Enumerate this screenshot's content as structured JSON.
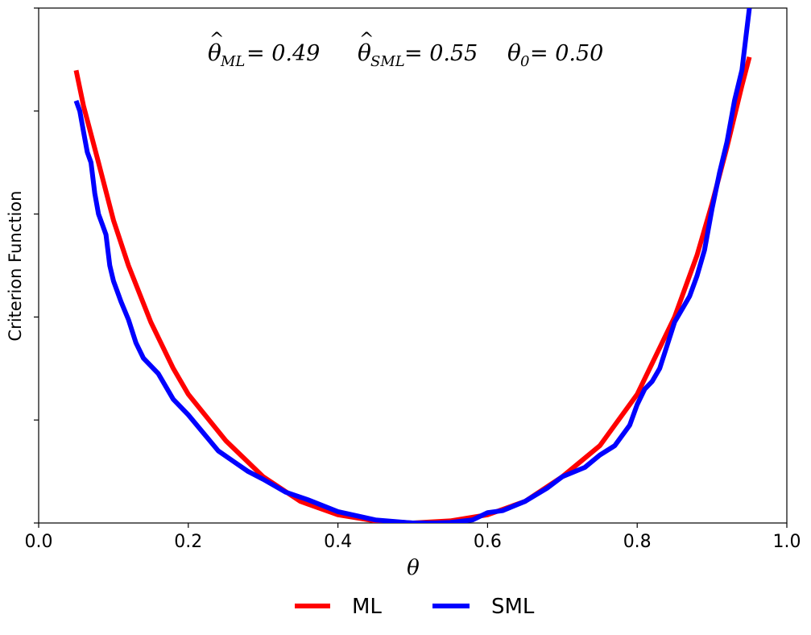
{
  "chart_data": {
    "type": "line",
    "title": "",
    "xlabel": "θ",
    "ylabel": "Criterion Function",
    "xlim": [
      0.0,
      1.0
    ],
    "ylim": [
      0,
      1
    ],
    "x_ticks": [
      "0.0",
      "0.2",
      "0.4",
      "0.6",
      "0.8",
      "1.0"
    ],
    "x_tick_values": [
      0.0,
      0.2,
      0.4,
      0.6,
      0.8,
      1.0
    ],
    "y_tick_values": [
      0,
      0.2,
      0.4,
      0.6,
      0.8,
      1.0
    ],
    "y_ticks_labeled": false,
    "grid": false,
    "legend_position": "bottom-center",
    "annotations": {
      "theta_ml": {
        "base": "θ",
        "hat": "^",
        "sub": "ML",
        "value": "= 0.49"
      },
      "theta_sml": {
        "base": "θ",
        "hat": "^",
        "sub": "SML",
        "value": "= 0.55"
      },
      "theta_0": {
        "base": "θ",
        "sub": "0",
        "value": "= 0.50"
      }
    },
    "series": [
      {
        "name": "ML",
        "color": "#ff0000",
        "x": [
          0.05,
          0.06,
          0.08,
          0.1,
          0.12,
          0.15,
          0.18,
          0.2,
          0.25,
          0.3,
          0.35,
          0.4,
          0.45,
          0.5,
          0.55,
          0.6,
          0.65,
          0.7,
          0.75,
          0.8,
          0.85,
          0.88,
          0.9,
          0.92,
          0.94,
          0.95
        ],
        "y": [
          0.879,
          0.81,
          0.7,
          0.588,
          0.5,
          0.39,
          0.3,
          0.25,
          0.16,
          0.09,
          0.042,
          0.016,
          0.004,
          0.0,
          0.004,
          0.016,
          0.042,
          0.09,
          0.15,
          0.25,
          0.4,
          0.52,
          0.62,
          0.73,
          0.85,
          0.905
        ]
      },
      {
        "name": "SML",
        "color": "#0000ff",
        "x": [
          0.05,
          0.055,
          0.06,
          0.065,
          0.07,
          0.075,
          0.08,
          0.085,
          0.09,
          0.095,
          0.1,
          0.11,
          0.12,
          0.13,
          0.14,
          0.16,
          0.18,
          0.2,
          0.22,
          0.24,
          0.26,
          0.28,
          0.3,
          0.33,
          0.36,
          0.4,
          0.45,
          0.5,
          0.53,
          0.55,
          0.58,
          0.6,
          0.62,
          0.65,
          0.68,
          0.7,
          0.73,
          0.75,
          0.77,
          0.79,
          0.8,
          0.81,
          0.82,
          0.83,
          0.84,
          0.85,
          0.86,
          0.87,
          0.88,
          0.89,
          0.9,
          0.91,
          0.92,
          0.93,
          0.94,
          0.945,
          0.95
        ],
        "y": [
          0.82,
          0.8,
          0.76,
          0.72,
          0.7,
          0.64,
          0.6,
          0.58,
          0.56,
          0.5,
          0.47,
          0.43,
          0.395,
          0.35,
          0.32,
          0.29,
          0.24,
          0.21,
          0.175,
          0.14,
          0.12,
          0.1,
          0.085,
          0.06,
          0.045,
          0.022,
          0.006,
          0.0,
          0.0,
          0.001,
          0.006,
          0.02,
          0.024,
          0.042,
          0.068,
          0.09,
          0.108,
          0.132,
          0.15,
          0.19,
          0.23,
          0.26,
          0.275,
          0.3,
          0.345,
          0.39,
          0.415,
          0.44,
          0.48,
          0.53,
          0.61,
          0.68,
          0.74,
          0.82,
          0.88,
          0.94,
          1.0
        ]
      }
    ]
  }
}
